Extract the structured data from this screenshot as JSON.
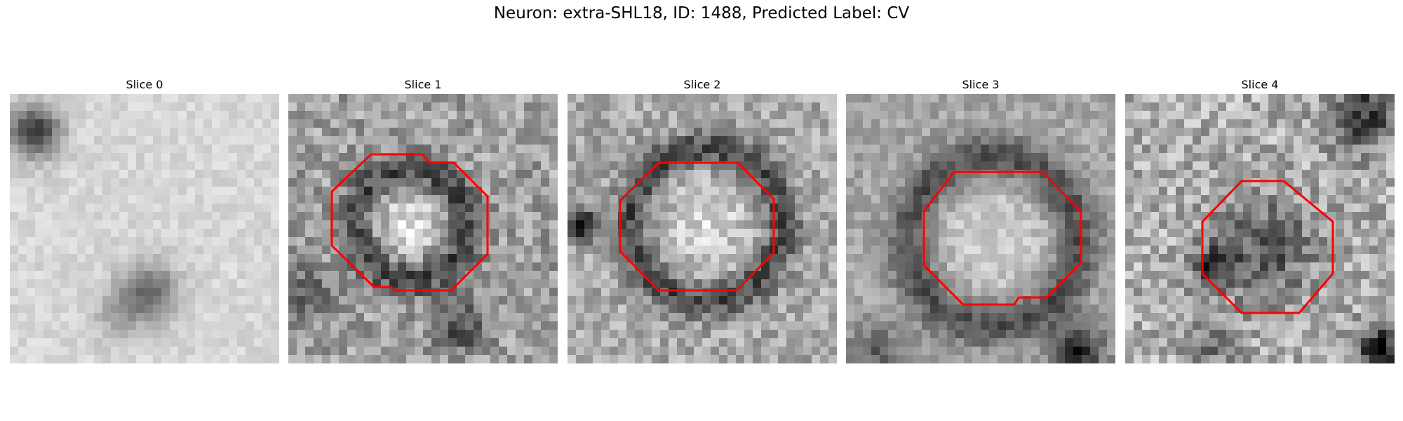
{
  "figure": {
    "title": "Neuron: extra-SHL18, ID: 1488, Predicted Label: CV",
    "outline_color": "#ff0000"
  },
  "panels": [
    {
      "title": "Slice 0",
      "has_outline": false
    },
    {
      "title": "Slice 1",
      "has_outline": true
    },
    {
      "title": "Slice 2",
      "has_outline": true
    },
    {
      "title": "Slice 3",
      "has_outline": true
    },
    {
      "title": "Slice 4",
      "has_outline": true
    }
  ]
}
